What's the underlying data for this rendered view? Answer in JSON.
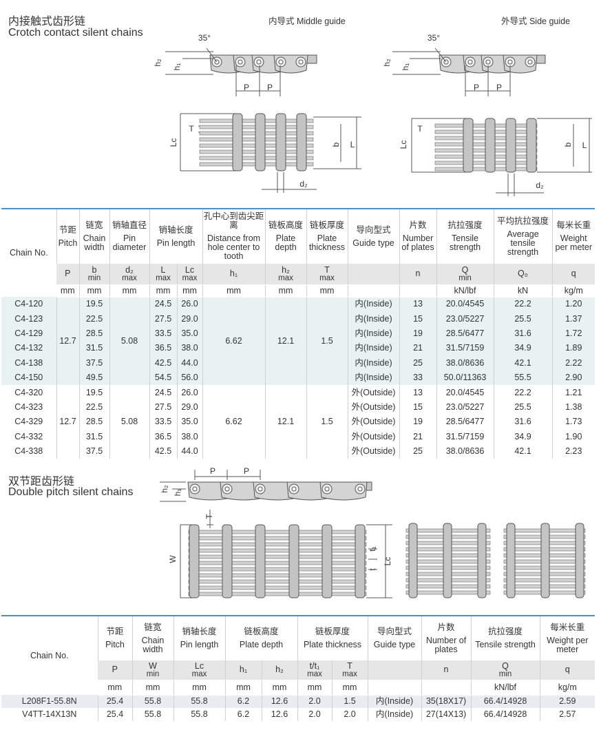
{
  "section1": {
    "title_cn": "内接触式齿形链",
    "title_en": "Crotch contact silent chains",
    "guide_middle": "内导式 Middle guide",
    "guide_side": "外导式 Side guide",
    "diagram_labels": {
      "middle_side": [
        "35°",
        "h₂",
        "h₁",
        "P",
        "P"
      ],
      "middle_plan": [
        "T",
        "Lc",
        "b",
        "L",
        "d₂"
      ],
      "side_side": [
        "35°",
        "h₂",
        "h₁",
        "P",
        "P"
      ],
      "side_plan": [
        "T",
        "Lc",
        "b",
        "L",
        "d₂"
      ]
    }
  },
  "table1": {
    "headers": [
      {
        "en": "Chain No."
      },
      {
        "cn": "节距",
        "en": "Pitch"
      },
      {
        "cn": "链宽",
        "en": "Chain width"
      },
      {
        "cn": "销轴直径",
        "en": "Pin diameter"
      },
      {
        "cn": "销轴长度",
        "en": "Pin length"
      },
      {
        "cn": "孔中心到齿尖距离",
        "en": "Distance from hole center to tooth"
      },
      {
        "cn": "链板高度",
        "en": "Plate depth"
      },
      {
        "cn": "链板厚度",
        "en": "Plate thickness"
      },
      {
        "cn": "导向型式",
        "en": "Guide type"
      },
      {
        "cn": "片数",
        "en": "Number of plates"
      },
      {
        "cn": "抗拉强度",
        "en": "Tensile strength"
      },
      {
        "cn": "平均抗拉强度",
        "en": "Average tensile strength"
      },
      {
        "cn": "每米长重",
        "en": "Weight per meter"
      }
    ],
    "symbols": [
      {
        "s": "P"
      },
      {
        "s": "b",
        "sub": "min"
      },
      {
        "s": "d₂",
        "sub": "max"
      },
      {
        "s": "L",
        "sub": "max"
      },
      {
        "s": "Lc",
        "sub": "max"
      },
      {
        "s": "h₁"
      },
      {
        "s": "h₂",
        "sub": "max"
      },
      {
        "s": "T",
        "sub": "max"
      },
      {
        "s": "n"
      },
      {
        "s": "Q",
        "sub": "min"
      },
      {
        "s": "Q₀"
      },
      {
        "s": "q"
      }
    ],
    "units": [
      "mm",
      "mm",
      "mm",
      "mm",
      "mm",
      "mm",
      "mm",
      "mm",
      "kN/lbf",
      "kN",
      "kg/m"
    ],
    "groups": [
      {
        "pitch": "12.7",
        "pin_diameter": "5.08",
        "h1": "6.62",
        "h2": "12.1",
        "T": "1.5",
        "rows": [
          [
            "C4-120",
            "19.5",
            "24.5",
            "26.0",
            "内(Inside)",
            "13",
            "20.0/4545",
            "22.2",
            "1.20"
          ],
          [
            "C4-123",
            "22.5",
            "27.5",
            "29.0",
            "内(Inside)",
            "15",
            "23.0/5227",
            "25.5",
            "1.37"
          ],
          [
            "C4-129",
            "28.5",
            "33.5",
            "35.0",
            "内(Inside)",
            "19",
            "28.5/6477",
            "31.6",
            "1.72"
          ],
          [
            "C4-132",
            "31.5",
            "36.5",
            "38.0",
            "内(Inside)",
            "21",
            "31.5/7159",
            "34.9",
            "1.89"
          ],
          [
            "C4-138",
            "37.5",
            "42.5",
            "44.0",
            "内(Inside)",
            "25",
            "38.0/8636",
            "42.1",
            "2.22"
          ],
          [
            "C4-150",
            "49.5",
            "54.5",
            "56.0",
            "内(Inside)",
            "33",
            "50.0/11363",
            "55.5",
            "2.90"
          ]
        ]
      },
      {
        "pitch": "12.7",
        "pin_diameter": "5.08",
        "h1": "6.62",
        "h2": "12.1",
        "T": "1.5",
        "rows": [
          [
            "C4-320",
            "19.5",
            "24.5",
            "26.0",
            "外(Outside)",
            "13",
            "20.0/4545",
            "22.2",
            "1.21"
          ],
          [
            "C4-323",
            "22.5",
            "27.5",
            "29.0",
            "外(Outside)",
            "15",
            "23.0/5227",
            "25.5",
            "1.38"
          ],
          [
            "C4-329",
            "28.5",
            "33.5",
            "35.0",
            "外(Outside)",
            "19",
            "28.5/6477",
            "31.6",
            "1.73"
          ],
          [
            "C4-332",
            "31.5",
            "36.5",
            "38.0",
            "外(Outside)",
            "21",
            "31.5/7159",
            "34.9",
            "1.90"
          ],
          [
            "C4-338",
            "37.5",
            "42.5",
            "44.0",
            "外(Outside)",
            "25",
            "38.0/8636",
            "42.1",
            "2.23"
          ]
        ]
      }
    ]
  },
  "section2": {
    "title_cn": "双节距齿形链",
    "title_en": "Double pitch silent chains",
    "diagram_labels": {
      "double_side": [
        "P",
        "P",
        "h₂",
        "h₁"
      ],
      "double_plan": [
        "T",
        "W",
        "t₁",
        "t",
        "Lc"
      ]
    }
  },
  "table2": {
    "headers": [
      {
        "en": "Chain No."
      },
      {
        "cn": "节距",
        "en": "Pitch"
      },
      {
        "cn": "链宽",
        "en": "Chain width"
      },
      {
        "cn": "销轴长度",
        "en": "Pin length"
      },
      {
        "cn": "链板高度",
        "en": "Plate depth"
      },
      {
        "cn": "链板厚度",
        "en": "Plate thickness"
      },
      {
        "cn": "导向型式",
        "en": "Guide type"
      },
      {
        "cn": "片数",
        "en": "Number of plates"
      },
      {
        "cn": "抗拉强度",
        "en": "Tensile strength"
      },
      {
        "cn": "每米长重",
        "en": "Weight per meter"
      }
    ],
    "symbols": [
      {
        "s": "P"
      },
      {
        "s": "W",
        "sub": "min"
      },
      {
        "s": "Lc",
        "sub": "max"
      },
      {
        "s": "h₁"
      },
      {
        "s": "h₂"
      },
      {
        "s": "t/t₁",
        "sub": "max"
      },
      {
        "s": "T",
        "sub": "max"
      },
      {
        "s": "n"
      },
      {
        "s": "Q",
        "sub": "min"
      },
      {
        "s": "q"
      }
    ],
    "units": [
      "mm",
      "mm",
      "mm",
      "mm",
      "mm",
      "mm",
      "mm",
      "kN/lbf",
      "kg/m"
    ],
    "rows": [
      [
        "L208F1-55.8N",
        "25.4",
        "55.8",
        "55.8",
        "6.2",
        "12.6",
        "2.0",
        "1.5",
        "内(Inside)",
        "35(18X17)",
        "66.4/14928",
        "2.59"
      ],
      [
        "V4TT-14X13N",
        "25.4",
        "55.8",
        "55.8",
        "6.2",
        "12.6",
        "2.0",
        "2.0",
        "内(Inside)",
        "27(14X13)",
        "66.4/14928",
        "2.57"
      ]
    ]
  }
}
